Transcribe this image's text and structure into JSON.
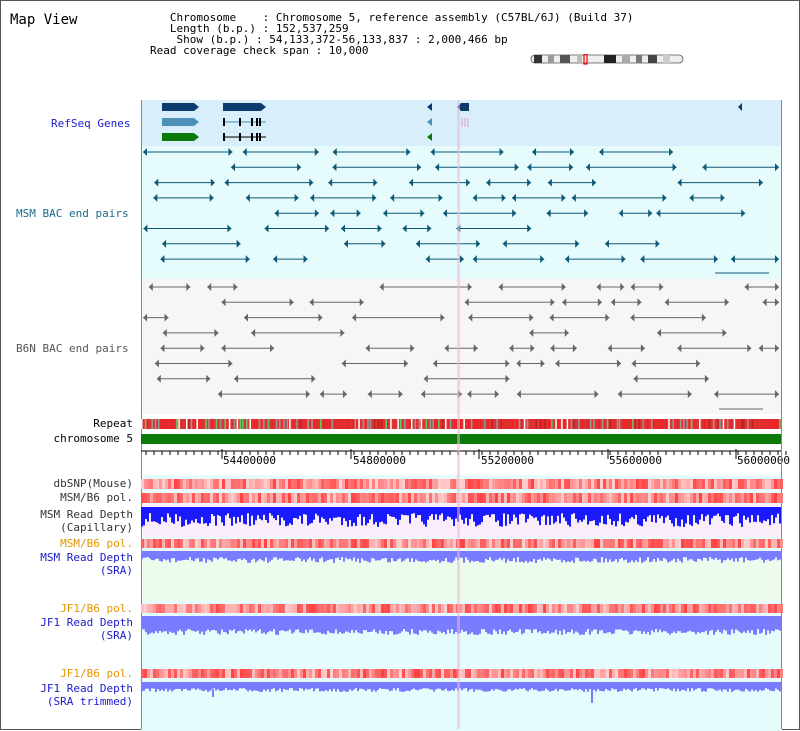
{
  "header": {
    "title": "Map View",
    "info_lines": [
      "   Chromosome    : Chromosome 5, reference assembly (C57BL/6J) (Build 37)",
      "   Length (b.p.) : 152,537,259",
      "    Show (b.p.) : 54,133,372-56,133,837 : 2,000,466 bp",
      "Read coverage check span : 10,000"
    ]
  },
  "colors": {
    "refseq_bg": "#d8eefa",
    "bac_bg": "#e6fbfb",
    "b6n_bg": "#f7f7f7",
    "chromosome": "#0b7a0b",
    "msm_cap": "#1a1aff",
    "sra_blue": "#7b7bff",
    "pol_red": "#ff5555",
    "dark_teal": "#0d5a78",
    "gray_feature": "#666666"
  },
  "tracks": {
    "refseq_genes": "RefSeq Genes",
    "msm_bac": "MSM BAC end pairs",
    "b6n_bac": "B6N BAC end pairs",
    "repeat": "Repeat",
    "chromosome": "chromosome 5",
    "dbsnp": "dbSNP(Mouse)",
    "msm_b6_pol_1": "MSM/B6 pol.",
    "msm_read_depth_cap_1": "MSM Read Depth",
    "msm_read_depth_cap_2": "(Capillary)",
    "msm_b6_pol_2": "MSM/B6 pol.",
    "msm_read_depth_sra_1": "MSM Read Depth",
    "msm_read_depth_sra_2": "(SRA)",
    "jf1_b6_pol_1": "JF1/B6 pol.",
    "jf1_read_depth_sra_1": "JF1 Read Depth",
    "jf1_read_depth_sra_2": "(SRA)",
    "jf1_b6_pol_2": "JF1/B6 pol.",
    "jf1_read_depth_trim_1": "JF1 Read Depth",
    "jf1_read_depth_trim_2": "(SRA trimmed)"
  },
  "axis": {
    "ticks": [
      "54400000",
      "54800000",
      "55200000",
      "55600000",
      "56000000"
    ]
  }
}
